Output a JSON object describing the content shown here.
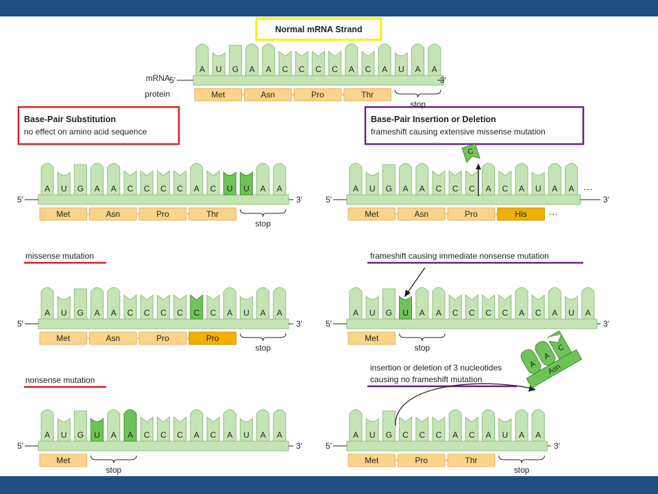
{
  "colors": {
    "frame": "#1f4e82",
    "base": "#c5e4b5",
    "base_stroke": "#8cbf7a",
    "base_hl": "#6fc35a",
    "aa": "#fbd38a",
    "aa_stroke": "#e3b362",
    "aa_hl": "#f2b100",
    "box_yellow": "#f7f200",
    "box_red": "#d41f1f",
    "box_purple": "#6b1f83"
  },
  "labels": {
    "mrna": "mRNA",
    "protein": "protein",
    "five": "5′",
    "three": "3′",
    "stop": "stop",
    "ellipsis": "···"
  },
  "boxes": {
    "normal": {
      "title": "Normal mRNA Strand"
    },
    "substitution": {
      "title": "Base-Pair Substitution",
      "sub": "no effect on amino acid sequence"
    },
    "insertion": {
      "title": "Base-Pair Insertion or Deletion",
      "sub": "frameshift causing extensive missense mutation"
    }
  },
  "section_labels": {
    "missense": "missense mutation",
    "nonsense": "nonsense mutation",
    "frameshift_nonsense": "frameshift causing immediate nonsense mutation",
    "no_frameshift_1": "insertion or deletion of 3 nucleotides",
    "no_frameshift_2": "causing no frameshift mutation"
  },
  "strands": {
    "normal": {
      "bases": [
        "A",
        "U",
        "G",
        "A",
        "A",
        "C",
        "C",
        "C",
        "C",
        "A",
        "C",
        "A",
        "U",
        "A",
        "A"
      ],
      "highlight": [],
      "aa": [
        "Met",
        "Asn",
        "Pro",
        "Thr"
      ],
      "aa_highlight": []
    },
    "substitution_silent": {
      "bases": [
        "A",
        "U",
        "G",
        "A",
        "A",
        "C",
        "C",
        "C",
        "C",
        "A",
        "C",
        "U",
        "U",
        "A",
        "A"
      ],
      "highlight": [
        11,
        12
      ],
      "aa": [
        "Met",
        "Asn",
        "Pro",
        "Thr"
      ],
      "aa_highlight": []
    },
    "frameshift_missense": {
      "bases": [
        "A",
        "U",
        "G",
        "A",
        "A",
        "C",
        "C",
        "C",
        "A",
        "C",
        "A",
        "U",
        "A",
        "A"
      ],
      "highlight": [],
      "aa": [
        "Met",
        "Asn",
        "Pro",
        "His"
      ],
      "aa_highlight": [
        3
      ],
      "deleted_base": "C"
    },
    "missense": {
      "bases": [
        "A",
        "U",
        "G",
        "A",
        "A",
        "C",
        "C",
        "C",
        "C",
        "C",
        "C",
        "A",
        "U",
        "A",
        "A"
      ],
      "highlight": [
        9
      ],
      "aa": [
        "Met",
        "Asn",
        "Pro",
        "Pro"
      ],
      "aa_highlight": [
        3
      ]
    },
    "frameshift_nonsense": {
      "bases": [
        "A",
        "U",
        "G",
        "U",
        "A",
        "A",
        "C",
        "C",
        "C",
        "C",
        "A",
        "C",
        "A",
        "U",
        "A"
      ],
      "highlight": [
        3
      ],
      "aa": [
        "Met"
      ],
      "aa_highlight": []
    },
    "nonsense": {
      "bases": [
        "A",
        "U",
        "G",
        "U",
        "A",
        "A",
        "C",
        "C",
        "C",
        "A",
        "C",
        "A",
        "U",
        "A",
        "A"
      ],
      "highlight": [
        3,
        5
      ],
      "aa": [
        "Met"
      ],
      "aa_highlight": []
    },
    "no_frameshift": {
      "bases": [
        "A",
        "U",
        "G",
        "C",
        "C",
        "C",
        "A",
        "C",
        "A",
        "U",
        "A",
        "A"
      ],
      "highlight": [],
      "aa": [
        "Met",
        "Pro",
        "Thr"
      ],
      "aa_highlight": [],
      "removed_bases": [
        "A",
        "A",
        "C"
      ],
      "removed_aa": "Asn"
    }
  }
}
